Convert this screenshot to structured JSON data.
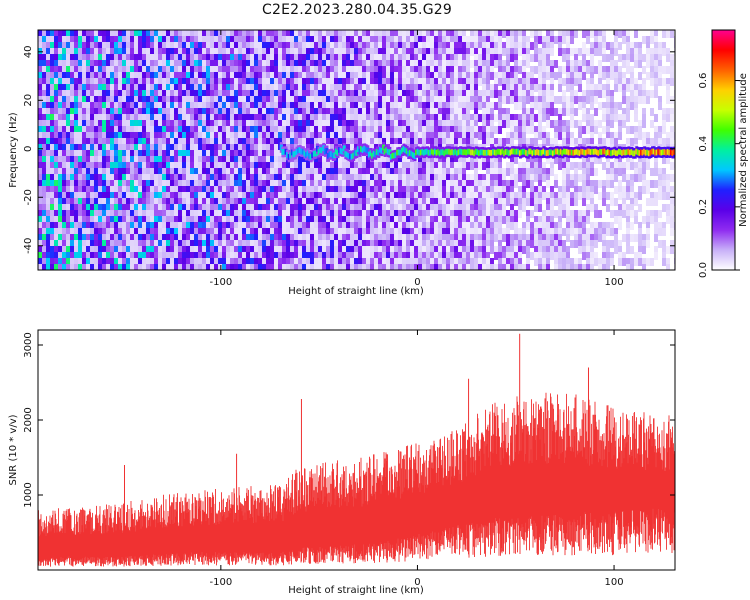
{
  "title": "C2E2.2023.280.04.35.G29",
  "chart_data": [
    {
      "type": "heatmap",
      "xlabel": "Height of straight line (km)",
      "ylabel": "Frequency (Hz)",
      "xlim": [
        -193,
        131
      ],
      "ylim": [
        -50,
        49
      ],
      "xticks": [
        -100,
        0,
        100
      ],
      "yticks": [
        -40,
        -20,
        0,
        20,
        40
      ],
      "colorbar": {
        "label": "Normalized spectral amplitude",
        "range": [
          0.0,
          0.76
        ],
        "ticks": [
          0.0,
          0.2,
          0.4,
          0.6
        ],
        "tick_labels": [
          "0.0",
          "0.2",
          "0.4",
          "0.6"
        ],
        "colors": [
          "#ffffff",
          "#c8b0f8",
          "#8f2cf0",
          "#5a00e8",
          "#2020ff",
          "#00c8ff",
          "#00f0a0",
          "#40ff00",
          "#c8ff00",
          "#ffd000",
          "#ff6000",
          "#ff0000",
          "#ff0090"
        ]
      },
      "signal_band": {
        "x_start": -70,
        "x_end": 131,
        "frequency": -1.5,
        "amplitude_start": 0.3,
        "amplitude_end": 0.62
      },
      "noise": {
        "amplitude_at_xmin": 0.24,
        "amplitude_at_xmax": 0.03
      }
    },
    {
      "type": "line",
      "xlabel": "Height of straight line (km)",
      "ylabel": "SNR (10 * v/v)",
      "xlim": [
        -193,
        131
      ],
      "ylim": [
        0,
        3200
      ],
      "xticks": [
        -100,
        0,
        100
      ],
      "yticks": [
        1000,
        2000,
        3000
      ],
      "series": [
        {
          "color": "#f03232",
          "envelope_x": [
            -193,
            -150,
            -120,
            -70,
            -60,
            -20,
            0,
            20,
            40,
            60,
            80,
            100,
            131
          ],
          "envelope_low": [
            150,
            150,
            200,
            200,
            250,
            300,
            400,
            500,
            600,
            600,
            650,
            650,
            700
          ],
          "envelope_high": [
            800,
            900,
            1050,
            1150,
            1400,
            1550,
            1700,
            1900,
            2250,
            2400,
            2350,
            2200,
            2050
          ],
          "peaks": [
            {
              "x": -149,
              "y": 1400
            },
            {
              "x": -92,
              "y": 1550
            },
            {
              "x": -59,
              "y": 2280
            },
            {
              "x": 26,
              "y": 2550
            },
            {
              "x": 52,
              "y": 3150
            },
            {
              "x": 87,
              "y": 2700
            }
          ]
        }
      ]
    }
  ]
}
